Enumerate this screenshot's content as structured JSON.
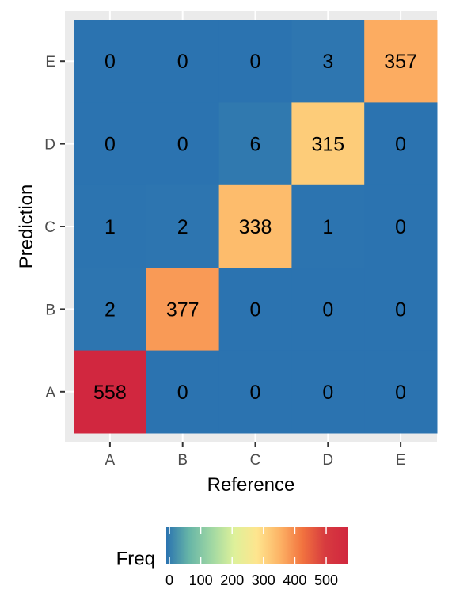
{
  "chart_data": {
    "type": "heatmap",
    "xlabel": "Reference",
    "ylabel": "Prediction",
    "x_categories": [
      "A",
      "B",
      "C",
      "D",
      "E"
    ],
    "y_categories": [
      "A",
      "B",
      "C",
      "D",
      "E"
    ],
    "cells": [
      {
        "x": "A",
        "y": "E",
        "value": 0
      },
      {
        "x": "B",
        "y": "E",
        "value": 0
      },
      {
        "x": "C",
        "y": "E",
        "value": 0
      },
      {
        "x": "D",
        "y": "E",
        "value": 3
      },
      {
        "x": "E",
        "y": "E",
        "value": 357
      },
      {
        "x": "A",
        "y": "D",
        "value": 0
      },
      {
        "x": "B",
        "y": "D",
        "value": 0
      },
      {
        "x": "C",
        "y": "D",
        "value": 6
      },
      {
        "x": "D",
        "y": "D",
        "value": 315
      },
      {
        "x": "E",
        "y": "D",
        "value": 0
      },
      {
        "x": "A",
        "y": "C",
        "value": 1
      },
      {
        "x": "B",
        "y": "C",
        "value": 2
      },
      {
        "x": "C",
        "y": "C",
        "value": 338
      },
      {
        "x": "D",
        "y": "C",
        "value": 1
      },
      {
        "x": "E",
        "y": "C",
        "value": 0
      },
      {
        "x": "A",
        "y": "B",
        "value": 2
      },
      {
        "x": "B",
        "y": "B",
        "value": 377
      },
      {
        "x": "C",
        "y": "B",
        "value": 0
      },
      {
        "x": "D",
        "y": "B",
        "value": 0
      },
      {
        "x": "E",
        "y": "B",
        "value": 0
      },
      {
        "x": "A",
        "y": "A",
        "value": 558
      },
      {
        "x": "B",
        "y": "A",
        "value": 0
      },
      {
        "x": "C",
        "y": "A",
        "value": 0
      },
      {
        "x": "D",
        "y": "A",
        "value": 0
      },
      {
        "x": "E",
        "y": "A",
        "value": 0
      }
    ],
    "legend": {
      "title": "Freq",
      "placement": "bottom",
      "ticks": [
        "0",
        "100",
        "200",
        "300",
        "400",
        "500"
      ],
      "tick_values": [
        0,
        100,
        200,
        300,
        400,
        500
      ],
      "range": [
        0,
        558
      ]
    },
    "colorscale": [
      "#2b73b0",
      "#66b5a7",
      "#9fd7a3",
      "#def19a",
      "#fee58e",
      "#fdb466",
      "#f2743f",
      "#d73b3f",
      "#d1273f"
    ],
    "panel_background": "#ebebeb",
    "grid_color": "#ffffff"
  }
}
